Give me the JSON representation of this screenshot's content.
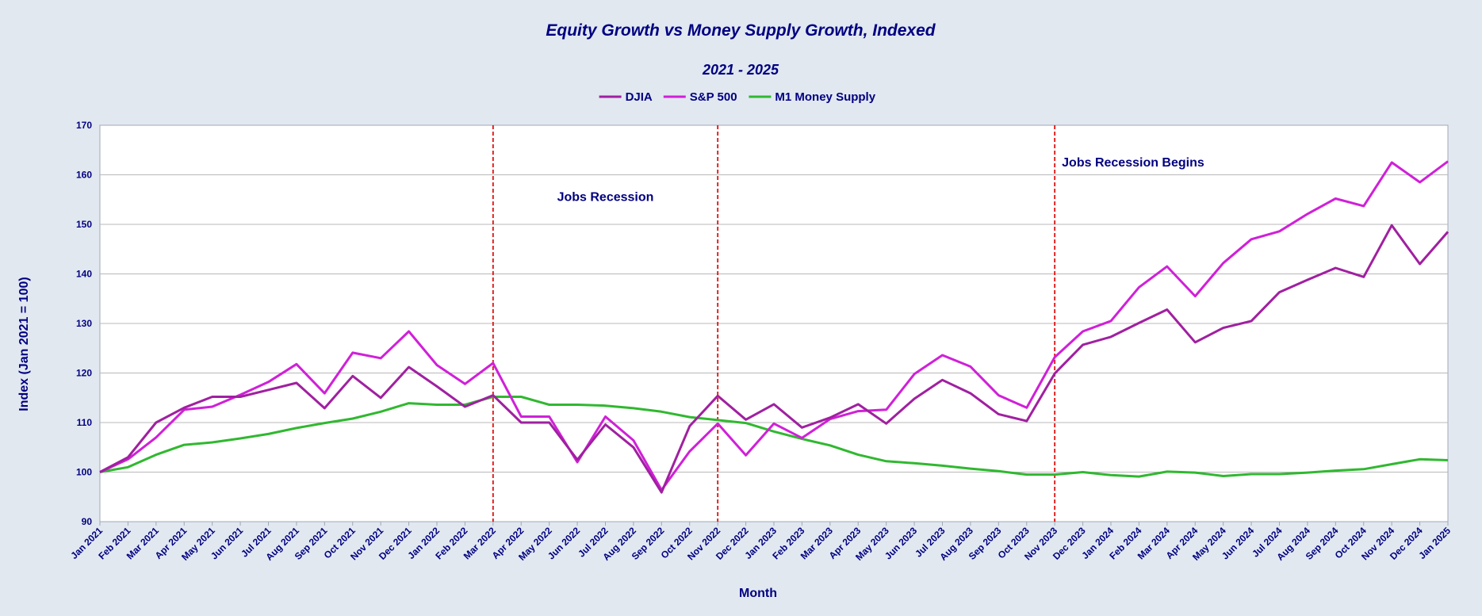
{
  "chart_data": {
    "type": "line",
    "title": "Equity Growth vs Money Supply Growth, Indexed",
    "subtitle": "2021 - 2025",
    "xlabel": "Month",
    "ylabel": "Index (Jan 2021 = 100)",
    "ylim": [
      90,
      170
    ],
    "yticks": [
      90,
      100,
      110,
      120,
      130,
      140,
      150,
      160,
      170
    ],
    "grid": "horizontal",
    "legend_position": "top-center",
    "categories": [
      "Jan 2021",
      "Feb 2021",
      "Mar 2021",
      "Apr 2021",
      "May 2021",
      "Jun 2021",
      "Jul 2021",
      "Aug 2021",
      "Sep 2021",
      "Oct 2021",
      "Nov 2021",
      "Dec 2021",
      "Jan 2022",
      "Feb 2022",
      "Mar 2022",
      "Apr 2022",
      "May 2022",
      "Jun 2022",
      "Jul 2022",
      "Aug 2022",
      "Sep 2022",
      "Oct 2022",
      "Nov 2022",
      "Dec 2022",
      "Jan 2023",
      "Feb 2023",
      "Mar 2023",
      "Apr 2023",
      "May 2023",
      "Jun 2023",
      "Jul 2023",
      "Aug 2023",
      "Sep 2023",
      "Oct 2023",
      "Nov 2023",
      "Dec 2023",
      "Jan 2024",
      "Feb 2024",
      "Mar 2024",
      "Apr 2024",
      "May 2024",
      "Jun 2024",
      "Jul 2024",
      "Aug 2024",
      "Sep 2024",
      "Oct 2024",
      "Nov 2024",
      "Dec 2024",
      "Jan 2025"
    ],
    "series": [
      {
        "name": "DJIA",
        "color": "#a020a0",
        "values": [
          100,
          103.0,
          110.0,
          113.0,
          115.2,
          115.2,
          116.6,
          118.0,
          112.9,
          119.4,
          115.0,
          121.2,
          117.3,
          113.2,
          115.5,
          110.0,
          110.0,
          102.5,
          109.6,
          105.0,
          95.9,
          109.3,
          115.4,
          110.6,
          113.7,
          109.0,
          111.0,
          113.7,
          109.8,
          114.8,
          118.6,
          115.9,
          111.7,
          110.3,
          119.9,
          125.7,
          127.3,
          130.1,
          132.8,
          126.2,
          129.1,
          130.5,
          136.3,
          138.8,
          141.2,
          139.4,
          149.8,
          142.0,
          148.5
        ]
      },
      {
        "name": "S&P 500",
        "color": "#d020d8",
        "values": [
          100,
          102.6,
          107.0,
          112.6,
          113.2,
          115.6,
          118.2,
          121.8,
          115.9,
          124.1,
          123.0,
          128.4,
          121.6,
          117.8,
          122.0,
          111.2,
          111.2,
          102.0,
          111.2,
          106.4,
          96.4,
          104.2,
          109.8,
          103.4,
          109.8,
          106.9,
          110.7,
          112.3,
          112.6,
          119.8,
          123.6,
          121.3,
          115.5,
          113.0,
          123.2,
          128.4,
          130.5,
          137.3,
          141.5,
          135.5,
          142.2,
          147.0,
          148.6,
          152.1,
          155.2,
          153.7,
          162.5,
          158.5,
          162.7
        ]
      },
      {
        "name": "M1 Money Supply",
        "color": "#30b830",
        "values": [
          100,
          101.0,
          103.5,
          105.5,
          106.0,
          106.8,
          107.7,
          108.9,
          109.9,
          110.8,
          112.2,
          113.9,
          113.6,
          113.6,
          115.2,
          115.2,
          113.6,
          113.6,
          113.4,
          112.9,
          112.2,
          111.1,
          110.5,
          109.9,
          108.2,
          106.7,
          105.4,
          103.5,
          102.2,
          101.8,
          101.3,
          100.7,
          100.2,
          99.5,
          99.5,
          100.0,
          99.4,
          99.1,
          100.1,
          99.9,
          99.2,
          99.6,
          99.6,
          99.9,
          100.3,
          100.6,
          101.6,
          102.6,
          102.4
        ]
      }
    ],
    "vlines": [
      {
        "at": "Mar 2022",
        "color": "#e01010"
      },
      {
        "at": "Nov 2022",
        "color": "#e01010"
      },
      {
        "at": "Nov 2023",
        "color": "#e01010"
      }
    ],
    "annotations": [
      {
        "text": "Jobs Recession",
        "at": "Jul 2022",
        "y": 155.5
      },
      {
        "text": "Jobs Recession Begins",
        "at": "Nov 2023",
        "y": 162.5
      }
    ]
  }
}
